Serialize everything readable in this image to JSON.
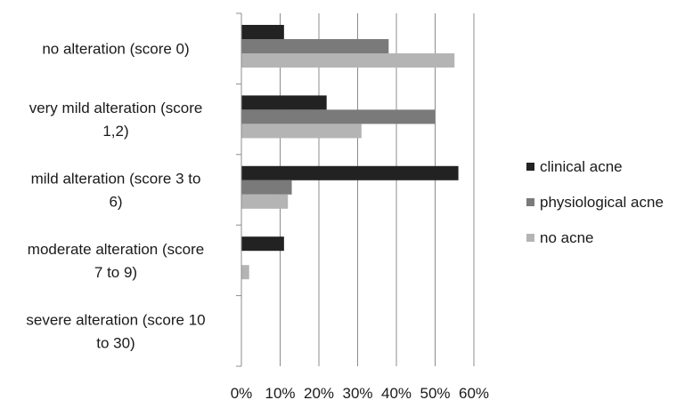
{
  "chart_data": {
    "type": "bar",
    "orientation": "horizontal",
    "categories": [
      "no alteration (score 0)",
      "very mild alteration (score 1,2)",
      "mild alteration (score 3 to 6)",
      "moderate alteration (score 7 to 9)",
      "severe alteration (score 10 to 30)"
    ],
    "category_label_lines": [
      [
        "no alteration (score 0)"
      ],
      [
        "very mild alteration (score",
        "1,2)"
      ],
      [
        "mild alteration (score 3 to",
        "6)"
      ],
      [
        "moderate alteration (score",
        "7 to 9)"
      ],
      [
        "severe alteration (score 10",
        "to 30)"
      ]
    ],
    "series": [
      {
        "name": "clinical acne",
        "color": "#222222",
        "values": [
          11,
          22,
          56,
          11,
          0
        ]
      },
      {
        "name": "physiological acne",
        "color": "#7a7a7a",
        "values": [
          38,
          50,
          13,
          0,
          0
        ]
      },
      {
        "name": "no acne",
        "color": "#b4b4b4",
        "values": [
          55,
          31,
          12,
          2,
          0
        ]
      }
    ],
    "xlim": [
      0,
      60
    ],
    "x_ticks": [
      0,
      10,
      20,
      30,
      40,
      50,
      60
    ],
    "x_tick_labels": [
      "0%",
      "10%",
      "20%",
      "30%",
      "40%",
      "50%",
      "60%"
    ],
    "grid": "vertical",
    "legend_position": "right",
    "title": "",
    "xlabel": "",
    "ylabel": ""
  }
}
